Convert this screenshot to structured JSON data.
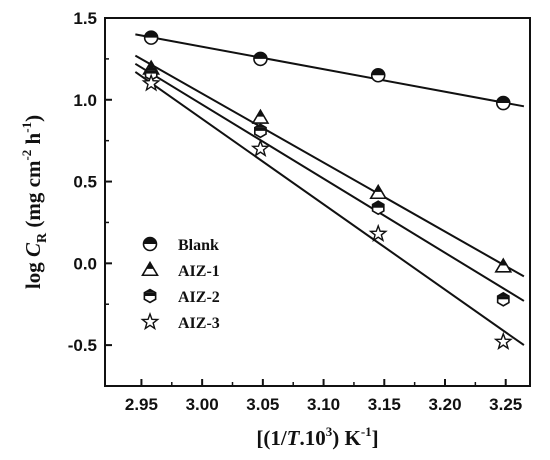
{
  "chart_data": {
    "type": "scatter",
    "title": "",
    "xlabel": {
      "pre": "[(1/",
      "italic": "T",
      "mid": ".10",
      "sup": "3",
      "post": ") K",
      "sup2": "-1",
      "end": "]"
    },
    "ylabel": {
      "pre": "log ",
      "italic": "C",
      "sub": "R",
      "mid": " (mg cm",
      "sup": "-2",
      "mid2": " h",
      "sup2": "-1",
      "end": ")"
    },
    "xlim": [
      2.92,
      3.27
    ],
    "ylim": [
      -0.75,
      1.5
    ],
    "xticks": [
      2.95,
      3.0,
      3.05,
      3.1,
      3.15,
      3.2,
      3.25
    ],
    "xtick_labels": [
      "2.95",
      "3.00",
      "3.05",
      "3.10",
      "3.15",
      "3.20",
      "3.25"
    ],
    "yticks": [
      -0.5,
      0.0,
      0.5,
      1.0,
      1.5
    ],
    "ytick_labels": [
      "-0.5",
      "0.0",
      "0.5",
      "1.0",
      "1.5"
    ],
    "legend_position": "bottom-left",
    "series": [
      {
        "name": "Blank",
        "marker": "half-circle",
        "x": [
          2.958,
          3.048,
          3.145,
          3.248
        ],
        "y": [
          1.38,
          1.25,
          1.15,
          0.98
        ],
        "fit": {
          "x": [
            2.945,
            3.265
          ],
          "y": [
            1.4,
            0.96
          ]
        }
      },
      {
        "name": "AIZ-1",
        "marker": "triangle",
        "x": [
          2.958,
          3.048,
          3.145,
          3.248
        ],
        "y": [
          1.19,
          0.89,
          0.43,
          -0.02
        ],
        "fit": {
          "x": [
            2.945,
            3.265
          ],
          "y": [
            1.27,
            -0.08
          ]
        }
      },
      {
        "name": "AIZ-2",
        "marker": "hexagon",
        "x": [
          2.958,
          3.048,
          3.145,
          3.248
        ],
        "y": [
          1.16,
          0.81,
          0.34,
          -0.22
        ],
        "fit": {
          "x": [
            2.945,
            3.265
          ],
          "y": [
            1.22,
            -0.23
          ]
        }
      },
      {
        "name": "AIZ-3",
        "marker": "star",
        "x": [
          2.958,
          3.048,
          3.145,
          3.248
        ],
        "y": [
          1.1,
          0.7,
          0.18,
          -0.48
        ],
        "fit": {
          "x": [
            2.945,
            3.265
          ],
          "y": [
            1.17,
            -0.5
          ]
        }
      }
    ]
  }
}
